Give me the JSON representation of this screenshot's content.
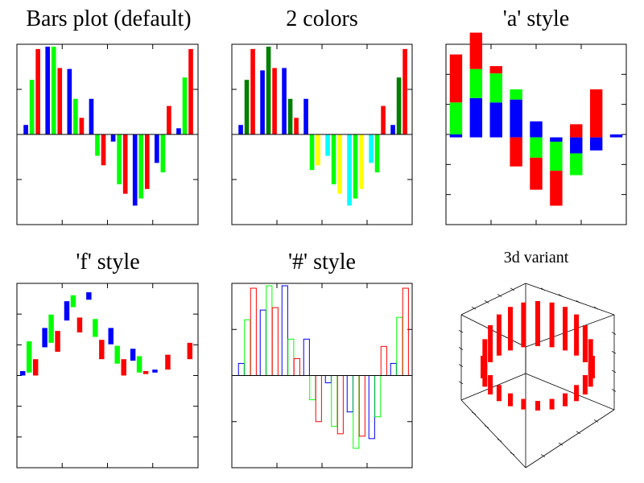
{
  "chart_data": [
    {
      "type": "bar",
      "title": "Bars plot (default)",
      "style": "grouped",
      "ylim": [
        -1.9,
        1.9
      ],
      "series": [
        {
          "color": "#0000ff",
          "values": [
            0.2,
            1.85,
            1.38,
            0.75,
            -0.15,
            -1.5,
            -0.6,
            0.13
          ]
        },
        {
          "color": "#00ff00",
          "values": [
            1.15,
            1.85,
            0.75,
            -0.45,
            -1.05,
            -1.35,
            -0.8,
            1.2
          ]
        },
        {
          "color": "#ff0000",
          "values": [
            1.8,
            1.4,
            0.35,
            -0.65,
            -1.25,
            -1.15,
            0.6,
            1.8
          ]
        }
      ]
    },
    {
      "type": "bar",
      "title": "2 colors",
      "style": "grouped-sign-colored",
      "ylim": [
        -1.9,
        1.9
      ],
      "series": [
        {
          "color": "#0000ff",
          "neg_color": "#00ffff",
          "values": [
            0.2,
            1.35,
            1.4,
            0.75,
            -0.45,
            -1.5,
            -0.6,
            0.2
          ]
        },
        {
          "color": "#007f00",
          "neg_color": "#00ff00",
          "values": [
            1.15,
            1.85,
            0.75,
            -0.75,
            -1.05,
            -1.35,
            -0.8,
            1.2
          ]
        },
        {
          "color": "#ff0000",
          "neg_color": "#ffff00",
          "values": [
            1.8,
            1.4,
            0.35,
            -0.65,
            -1.25,
            -1.15,
            0.6,
            1.8
          ]
        }
      ]
    },
    {
      "type": "bar",
      "title": "'a' style",
      "style": "stacked",
      "ylim": [
        -3,
        3.2
      ],
      "series": [
        {
          "color": "#0000ff",
          "values": [
            0.1,
            1.35,
            1.2,
            1.3,
            0.55,
            -0.15,
            -0.55,
            -0.45,
            0.1
          ]
        },
        {
          "color": "#00ff00",
          "values": [
            1.1,
            1.0,
            1.0,
            0.35,
            -0.7,
            -1.0,
            -0.75,
            0
          ]
        },
        {
          "color": "#ff0000",
          "values": [
            1.65,
            1.25,
            0.25,
            -1.0,
            -1.1,
            -1.2,
            0.45,
            1.65
          ]
        }
      ]
    },
    {
      "type": "bar",
      "title": "'f' style",
      "style": "floating",
      "ylim": [
        -3.1,
        3.1
      ],
      "series": [
        {
          "color": "#0000ff",
          "segments": [
            [
              0,
              0.15
            ],
            [
              0.95,
              1.6
            ],
            [
              1.85,
              2.5
            ],
            [
              2.55,
              2.8
            ],
            [
              1.05,
              1.6
            ],
            [
              0.5,
              0.9
            ],
            [
              0.1,
              0.2
            ]
          ]
        },
        {
          "color": "#00ff00",
          "segments": [
            [
              0.1,
              1.15
            ],
            [
              1.1,
              2.05
            ],
            [
              2.3,
              2.7
            ],
            [
              1.3,
              1.9
            ],
            [
              0.4,
              1.0
            ],
            [
              0.1,
              0.65
            ]
          ]
        },
        {
          "color": "#ff0000",
          "segments": [
            [
              0,
              0.55
            ],
            [
              0.8,
              1.5
            ],
            [
              1.45,
              1.95
            ],
            [
              0.55,
              1.2
            ],
            [
              0,
              0.55
            ],
            [
              0.05,
              0.15
            ],
            [
              0.2,
              0.7
            ],
            [
              0.55,
              1.1
            ]
          ]
        }
      ]
    },
    {
      "type": "bar",
      "title": "'#' style",
      "style": "outlined",
      "ylim": [
        -1.9,
        1.9
      ],
      "series": [
        {
          "color": "#0000ff",
          "values": [
            0.25,
            1.35,
            1.85,
            0.75,
            -0.15,
            -0.75,
            -1.3,
            0.25
          ]
        },
        {
          "color": "#00ff00",
          "values": [
            1.15,
            1.85,
            0.75,
            -0.5,
            -1.05,
            -1.5,
            -0.85,
            1.2
          ]
        },
        {
          "color": "#ff0000",
          "values": [
            1.8,
            1.4,
            0.35,
            -0.95,
            -1.2,
            -1.25,
            0.6,
            1.8
          ]
        }
      ]
    },
    {
      "type": "bar",
      "title": "3d variant",
      "style": "3d",
      "series": [
        {
          "color": "#ff0000"
        }
      ]
    }
  ]
}
